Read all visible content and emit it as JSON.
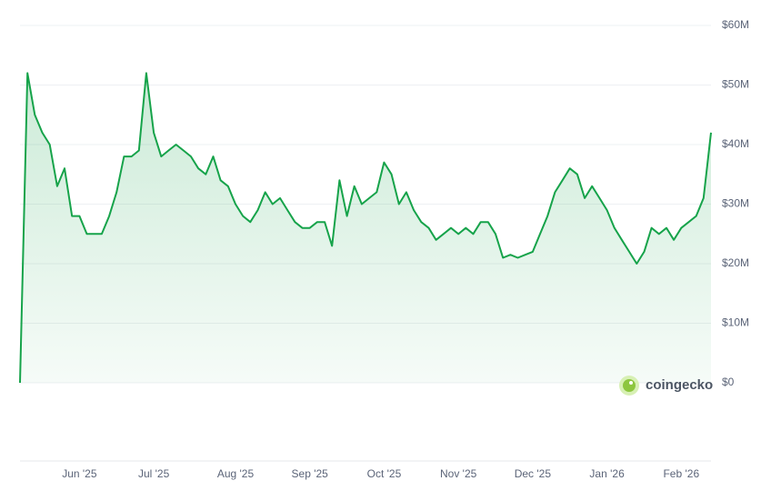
{
  "chart_data": {
    "type": "area",
    "color": "#16a34a",
    "grid": true,
    "watermark": "coingecko",
    "ylim": [
      0,
      60000000
    ],
    "yticks": [
      {
        "value": 0,
        "label": "$0"
      },
      {
        "value": 10000000,
        "label": "$10M"
      },
      {
        "value": 20000000,
        "label": "$20M"
      },
      {
        "value": 30000000,
        "label": "$30M"
      },
      {
        "value": 40000000,
        "label": "$40M"
      },
      {
        "value": 50000000,
        "label": "$50M"
      },
      {
        "value": 60000000,
        "label": "$60M"
      }
    ],
    "categories": [
      null,
      null,
      null,
      null,
      null,
      null,
      null,
      null,
      "Jun '25",
      null,
      null,
      null,
      null,
      null,
      null,
      null,
      null,
      null,
      "Jul '25",
      null,
      null,
      null,
      null,
      null,
      null,
      null,
      null,
      null,
      null,
      "Aug '25",
      null,
      null,
      null,
      null,
      null,
      null,
      null,
      null,
      null,
      "Sep '25",
      null,
      null,
      null,
      null,
      null,
      null,
      null,
      null,
      null,
      "Oct '25",
      null,
      null,
      null,
      null,
      null,
      null,
      null,
      null,
      null,
      "Nov '25",
      null,
      null,
      null,
      null,
      null,
      null,
      null,
      null,
      null,
      "Dec '25",
      null,
      null,
      null,
      null,
      null,
      null,
      null,
      null,
      null,
      "Jan '26",
      null,
      null,
      null,
      null,
      null,
      null,
      null,
      null,
      null,
      "Feb '26",
      null,
      null,
      null,
      null
    ],
    "values": [
      0,
      52000000,
      45000000,
      42000000,
      40000000,
      33000000,
      36000000,
      28000000,
      28000000,
      25000000,
      25000000,
      25000000,
      28000000,
      32000000,
      38000000,
      38000000,
      39000000,
      52000000,
      42000000,
      38000000,
      39000000,
      40000000,
      39000000,
      38000000,
      36000000,
      35000000,
      38000000,
      34000000,
      33000000,
      30000000,
      28000000,
      27000000,
      29000000,
      32000000,
      30000000,
      31000000,
      29000000,
      27000000,
      26000000,
      26000000,
      27000000,
      27000000,
      23000000,
      34000000,
      28000000,
      33000000,
      30000000,
      31000000,
      32000000,
      37000000,
      35000000,
      30000000,
      32000000,
      29000000,
      27000000,
      26000000,
      24000000,
      25000000,
      26000000,
      25000000,
      26000000,
      25000000,
      27000000,
      27000000,
      25000000,
      21000000,
      21500000,
      21000000,
      21500000,
      22000000,
      25000000,
      28000000,
      32000000,
      34000000,
      36000000,
      35000000,
      31000000,
      33000000,
      31000000,
      29000000,
      26000000,
      24000000,
      22000000,
      20000000,
      22000000,
      26000000,
      25000000,
      26000000,
      24000000,
      26000000,
      27000000,
      28000000,
      31000000,
      42000000
    ]
  }
}
